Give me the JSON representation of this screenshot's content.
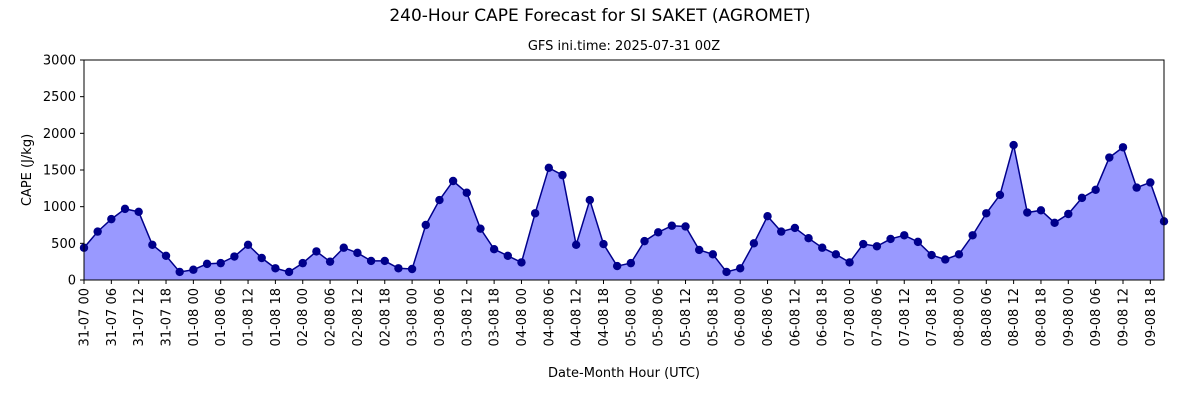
{
  "chart_data": {
    "type": "area",
    "title": "240-Hour CAPE Forecast for SI SAKET (AGROMET)",
    "subtitle": "GFS ini.time: 2025-07-31 00Z",
    "xlabel": "Date-Month Hour (UTC)",
    "ylabel": "CAPE (J/kg)",
    "ylim": [
      0,
      3000
    ],
    "yticks": [
      0,
      500,
      1000,
      1500,
      2000,
      2500,
      3000
    ],
    "grid": false,
    "colors": {
      "line": "#00008b",
      "marker": "#00008b",
      "fill": "#9999ff"
    },
    "x_tick_labels": [
      "31-07 00",
      "31-07 06",
      "31-07 12",
      "31-07 18",
      "01-08 00",
      "01-08 06",
      "01-08 12",
      "01-08 18",
      "02-08 00",
      "02-08 06",
      "02-08 12",
      "02-08 18",
      "03-08 00",
      "03-08 06",
      "03-08 12",
      "03-08 18",
      "04-08 00",
      "04-08 06",
      "04-08 12",
      "04-08 18",
      "05-08 00",
      "05-08 06",
      "05-08 12",
      "05-08 18",
      "06-08 00",
      "06-08 06",
      "06-08 12",
      "06-08 18",
      "07-08 00",
      "07-08 06",
      "07-08 12",
      "07-08 18",
      "08-08 00",
      "08-08 06",
      "08-08 12",
      "08-08 18",
      "09-08 00",
      "09-08 06",
      "09-08 12",
      "09-08 18"
    ],
    "series": [
      {
        "values": [
          440,
          660,
          830,
          970,
          930,
          480,
          330,
          110,
          140,
          220,
          230,
          320,
          480,
          300,
          160,
          110,
          230,
          390,
          250,
          440,
          370,
          260,
          260,
          160,
          150,
          750,
          1090,
          1350,
          1190,
          700,
          420,
          330,
          240,
          910,
          1530,
          1430,
          480,
          1090,
          490,
          190,
          230,
          530,
          650,
          740,
          730,
          410,
          350,
          110,
          160,
          500,
          870,
          660,
          710,
          570,
          440,
          350,
          240,
          490,
          460,
          560,
          610,
          520,
          340,
          280,
          350,
          610,
          910,
          1160,
          1840,
          920,
          950,
          780,
          900,
          1120,
          1230,
          1670,
          1810,
          1260,
          1330,
          800
        ]
      }
    ]
  }
}
